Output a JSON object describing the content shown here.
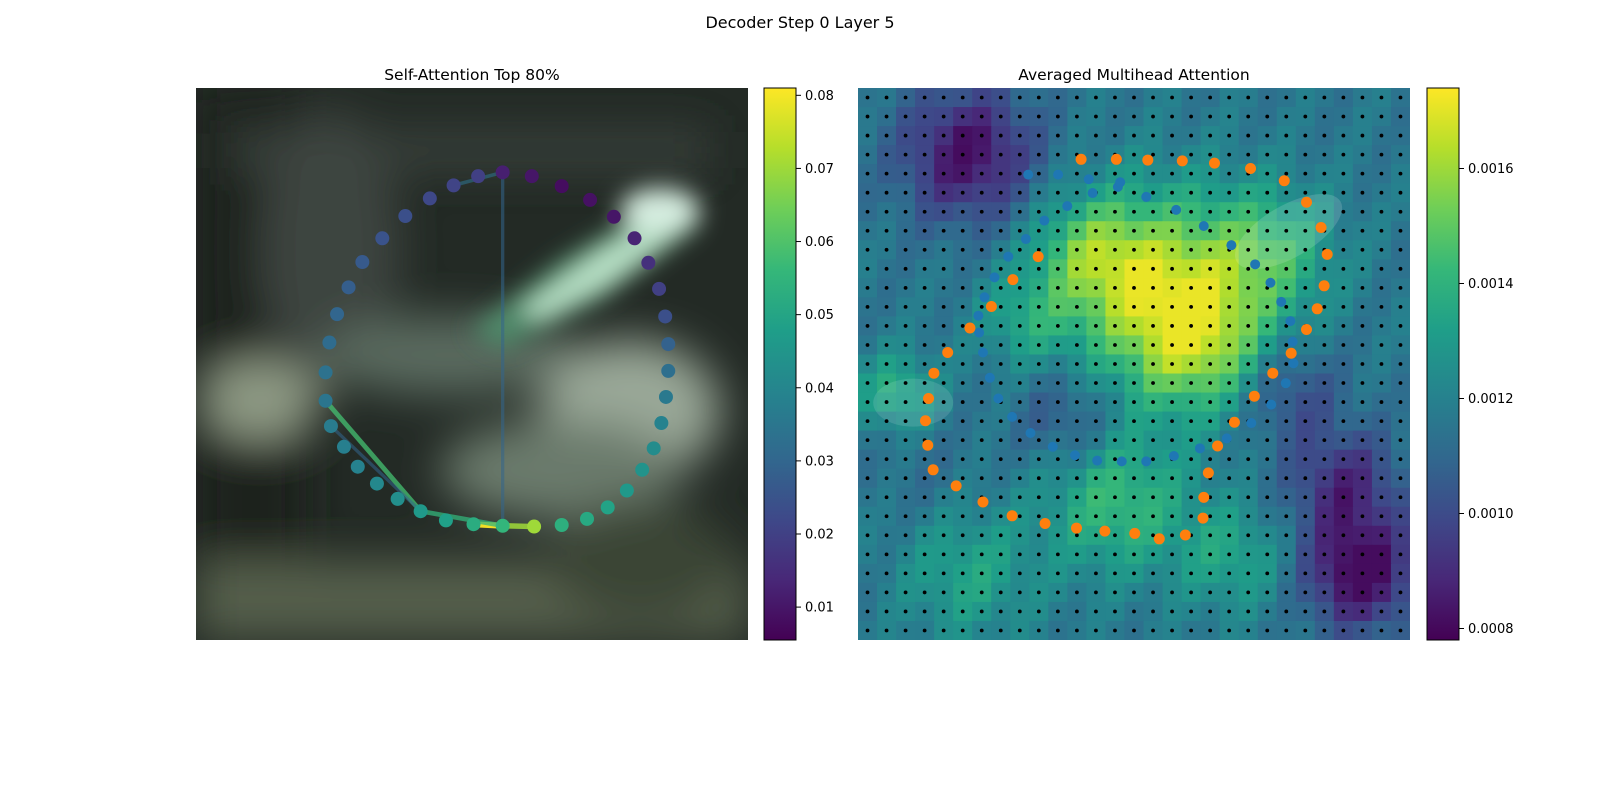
{
  "figure": {
    "suptitle": "Decoder Step 0 Layer 5"
  },
  "colors": {
    "viridis": [
      "#440154",
      "#482878",
      "#3e4989",
      "#31688e",
      "#26828e",
      "#1f9e89",
      "#35b779",
      "#6ece58",
      "#b5de2b",
      "#fde725"
    ],
    "pred_points": "#1f77b4",
    "gt_points": "#ff7f0e",
    "grid_dots": "#000000"
  },
  "chart_data": [
    {
      "type": "scatter",
      "title": "Self-Attention Top 80%",
      "background": "blurred dark photo with bright green/white streak (lane/road image)",
      "colorbar": {
        "ticks": [
          "0.01",
          "0.02",
          "0.03",
          "0.04",
          "0.05",
          "0.06",
          "0.07",
          "0.08"
        ],
        "range": [
          0.0055,
          0.081
        ]
      },
      "points": {
        "note": "40 points forming a closed contour (image pixel coords 0-720); color = attention weight",
        "x": [
          400,
          438,
          477,
          514,
          545,
          572,
          590,
          604,
          612,
          616,
          616,
          613,
          607,
          597,
          582,
          562,
          537,
          510,
          477,
          441,
          400,
          362,
          326,
          293,
          263,
          236,
          211,
          193,
          176,
          169,
          169,
          174,
          184,
          199,
          217,
          243,
          273,
          305,
          336,
          368
        ],
        "y": [
          110,
          115,
          128,
          146,
          168,
          196,
          228,
          262,
          298,
          334,
          369,
          403,
          437,
          470,
          498,
          525,
          547,
          562,
          570,
          572,
          571,
          569,
          564,
          552,
          536,
          516,
          494,
          468,
          441,
          408,
          371,
          332,
          295,
          260,
          227,
          196,
          167,
          144,
          127,
          115
        ],
        "values": [
          0.012,
          0.01,
          0.008,
          0.009,
          0.01,
          0.013,
          0.016,
          0.02,
          0.024,
          0.029,
          0.033,
          0.036,
          0.039,
          0.042,
          0.044,
          0.046,
          0.049,
          0.051,
          0.053,
          0.07,
          0.055,
          0.052,
          0.048,
          0.046,
          0.043,
          0.041,
          0.039,
          0.038,
          0.037,
          0.035,
          0.034,
          0.032,
          0.03,
          0.028,
          0.027,
          0.025,
          0.024,
          0.022,
          0.021,
          0.02
        ]
      },
      "attention_lines": [
        {
          "from": 20,
          "to": 21,
          "value": 0.081
        },
        {
          "from": 20,
          "to": 19,
          "value": 0.07
        },
        {
          "from": 20,
          "to": 23,
          "value": 0.055
        },
        {
          "from": 23,
          "to": 29,
          "value": 0.058
        },
        {
          "from": 23,
          "to": 28,
          "value": 0.03
        },
        {
          "from": 20,
          "to": 0,
          "value": 0.03
        },
        {
          "from": 0,
          "to": 38,
          "value": 0.034
        }
      ]
    },
    {
      "type": "heatmap",
      "title": "Averaged Multihead Attention",
      "grid": {
        "rows": 29,
        "cols": 29
      },
      "colorbar": {
        "ticks": [
          "0.0008",
          "0.0010",
          "0.0012",
          "0.0014",
          "0.0016"
        ],
        "range": [
          0.00078,
          0.00174
        ]
      },
      "pred_points": {
        "x": [
          222,
          261,
          301,
          339,
          376,
          415,
          451,
          487,
          518,
          538,
          552,
          564,
          567,
          568,
          558,
          539,
          513,
          481,
          446,
          412,
          376,
          344,
          312,
          283,
          254,
          225,
          201,
          183,
          172,
          163,
          158,
          157,
          165,
          178,
          196,
          219,
          243,
          273,
          306,
          342
        ],
        "y": [
          113,
          113,
          119,
          129,
          142,
          159,
          180,
          205,
          230,
          254,
          279,
          304,
          331,
          359,
          385,
          413,
          437,
          457,
          470,
          480,
          487,
          487,
          486,
          479,
          468,
          450,
          429,
          405,
          378,
          345,
          319,
          297,
          273,
          247,
          220,
          197,
          173,
          154,
          137,
          123
        ]
      },
      "gt_points": {
        "x": [
          291,
          337,
          378,
          423,
          465,
          512,
          556,
          585,
          604,
          612,
          608,
          599,
          585,
          565,
          541,
          517,
          491,
          469,
          457,
          451,
          450,
          427,
          393,
          361,
          322,
          285,
          244,
          201,
          163,
          128,
          98,
          91,
          88,
          92,
          99,
          117,
          146,
          174,
          202,
          235
        ],
        "y": [
          93,
          93,
          94,
          95,
          98,
          105,
          121,
          149,
          182,
          217,
          258,
          288,
          315,
          346,
          372,
          402,
          436,
          467,
          502,
          534,
          561,
          583,
          588,
          581,
          578,
          574,
          568,
          558,
          540,
          519,
          498,
          466,
          434,
          405,
          372,
          345,
          313,
          285,
          250,
          220
        ]
      }
    }
  ]
}
